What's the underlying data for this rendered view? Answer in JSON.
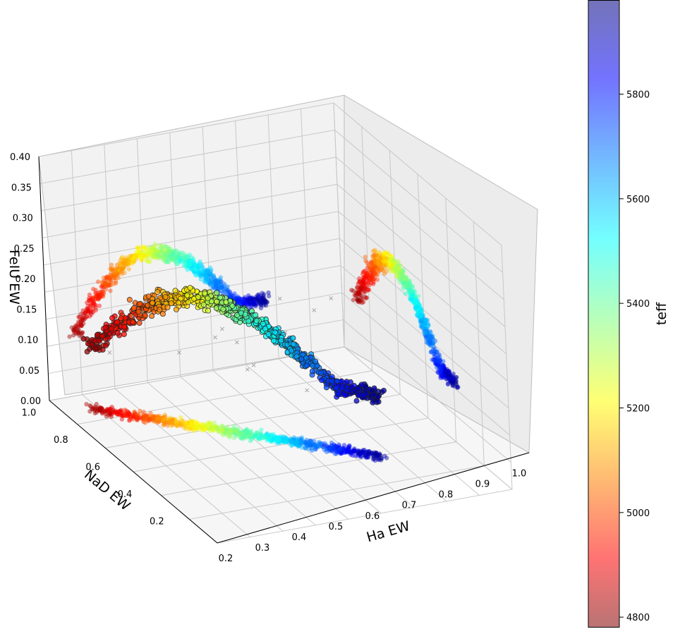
{
  "chart_data": {
    "type": "scatter3d",
    "title": "",
    "xlabel": "Ha EW",
    "ylabel": "NaD EW",
    "zlabel": "FeIU EW",
    "xlim": [
      0.2,
      1.05
    ],
    "ylim": [
      0.0,
      1.05
    ],
    "zlim": [
      0.0,
      0.4
    ],
    "x_ticks": [
      "0.2",
      "0.3",
      "0.4",
      "0.5",
      "0.6",
      "0.7",
      "0.8",
      "0.9",
      "1.0"
    ],
    "y_ticks": [
      "0.2",
      "0.4",
      "0.6",
      "0.8",
      "1.0"
    ],
    "z_ticks": [
      "0.00",
      "0.05",
      "0.10",
      "0.15",
      "0.20",
      "0.25",
      "0.30",
      "0.35",
      "0.40"
    ],
    "colorbar": {
      "label": "teff",
      "colormap": "jet",
      "range": [
        4780,
        5980
      ],
      "ticks": [
        "4800",
        "5000",
        "5200",
        "5400",
        "5600",
        "5800"
      ]
    },
    "series": [
      {
        "name": "3D points (teff-coloured, edged)",
        "role": "main",
        "note": "curved sequence rising from (0.3,0.9,0.10) to (0.6,0.5,0.22) then falling to (0.85,0.4,0.08)"
      },
      {
        "name": "Projection onto Ha–FeIU back wall",
        "role": "wall_x"
      },
      {
        "name": "Projection onto NaD–FeIU side wall",
        "role": "wall_y"
      },
      {
        "name": "Projection onto Ha–NaD floor",
        "role": "floor"
      },
      {
        "name": "Unclassified (grey x)",
        "role": "crosses"
      }
    ],
    "legend": ""
  }
}
